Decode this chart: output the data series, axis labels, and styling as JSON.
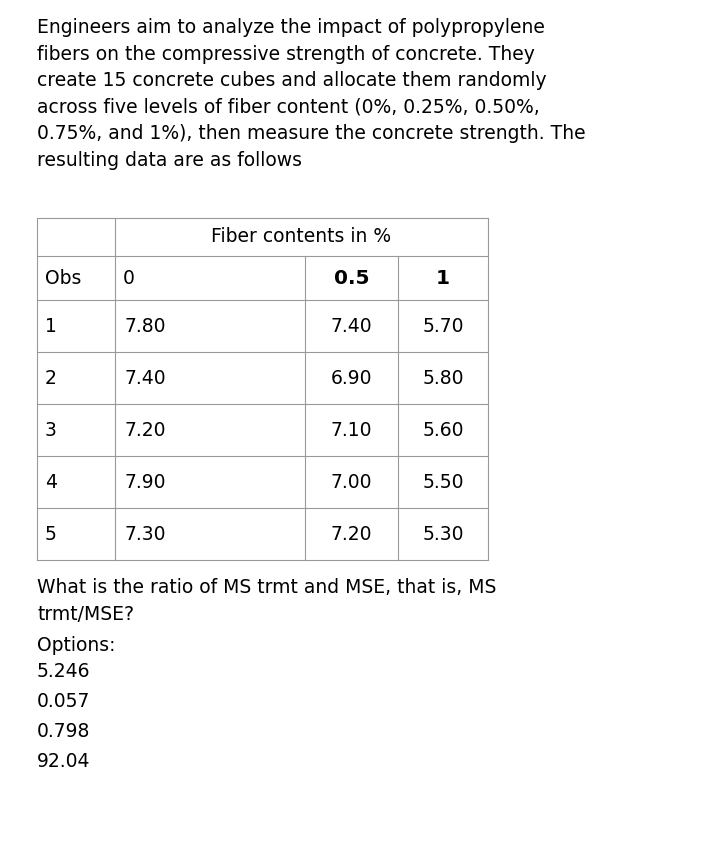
{
  "intro_text": "Engineers aim to analyze the impact of polypropylene\nfibers on the compressive strength of concrete. They\ncreate 15 concrete cubes and allocate them randomly\nacross five levels of fiber content (0%, 0.25%, 0.50%,\n0.75%, and 1%), then measure the concrete strength. The\nresulting data are as follows",
  "fiber_header": "Fiber contents in %",
  "obs": [
    1,
    2,
    3,
    4,
    5
  ],
  "col0_vals": [
    "7.80",
    "7.40",
    "7.20",
    "7.90",
    "7.30"
  ],
  "col05_vals": [
    "7.40",
    "6.90",
    "7.10",
    "7.00",
    "7.20"
  ],
  "col1_vals": [
    "5.70",
    "5.80",
    "5.60",
    "5.50",
    "5.30"
  ],
  "question": "What is the ratio of MS trmt and MSE, that is, MS\ntrmt/MSE?",
  "options_label": "Options:",
  "options": [
    "5.246",
    "0.057",
    "0.798",
    "92.04"
  ],
  "bg_color": "#ffffff",
  "text_color": "#000000",
  "font_size_intro": 13.5,
  "font_size_table": 13.5,
  "font_size_question": 13.5,
  "table_line_color": "#999999"
}
